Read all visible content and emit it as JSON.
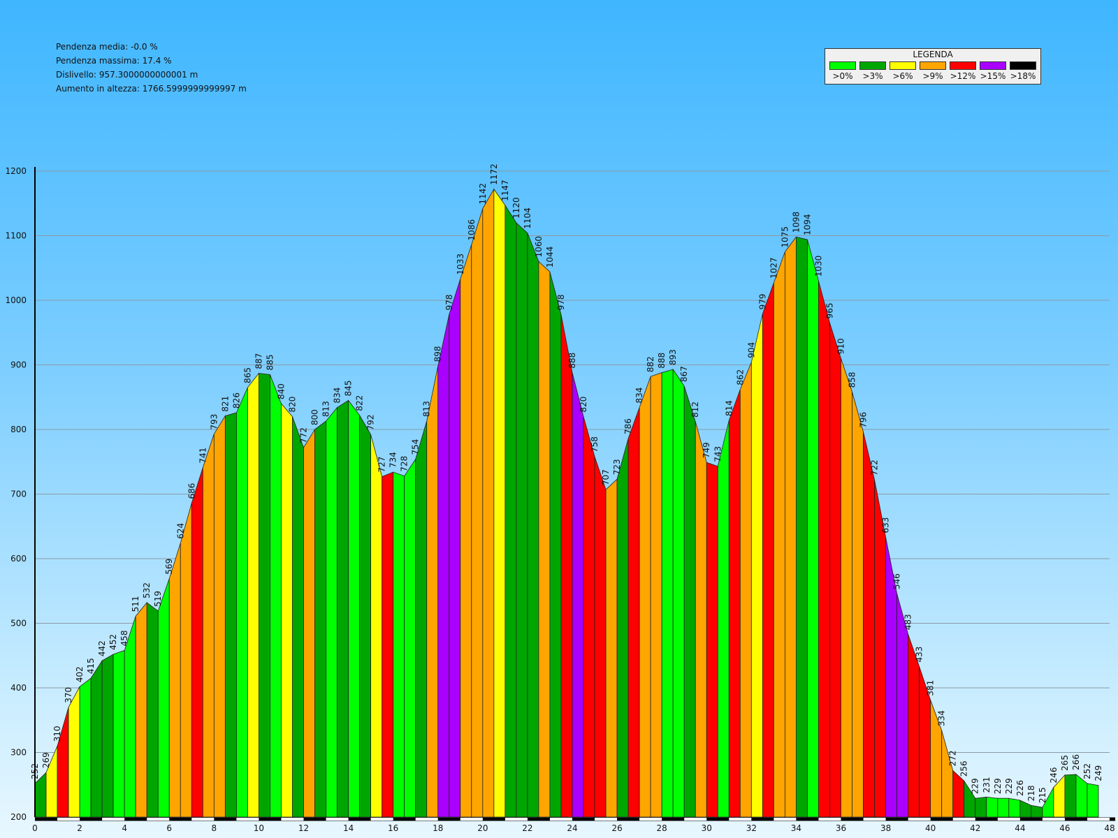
{
  "stats": {
    "avg_slope": "Pendenza media: -0.0 %",
    "max_slope": "Pendenza massima: 17.4 %",
    "elevation_diff": "Dislivello: 957.3000000000001 m",
    "total_gain": "Aumento in altezza: 1766.5999999999997 m"
  },
  "legend": {
    "title": "LEGENDA",
    "items": [
      {
        "label": ">0%",
        "color": "#00ff00"
      },
      {
        "label": ">3%",
        "color": "#00a600"
      },
      {
        "label": ">6%",
        "color": "#ffff00"
      },
      {
        "label": ">9%",
        "color": "#ffa500"
      },
      {
        "label": ">12%",
        "color": "#ff0000"
      },
      {
        "label": ">15%",
        "color": "#aa00ff"
      },
      {
        "label": ">18%",
        "color": "#000000"
      }
    ]
  },
  "chart_data": {
    "type": "area",
    "x_step_km": 0.5,
    "xlim": [
      0,
      48
    ],
    "ylim": [
      200,
      1200
    ],
    "yticks": [
      200,
      300,
      400,
      500,
      600,
      700,
      800,
      900,
      1000,
      1100,
      1200
    ],
    "xticks": [
      0,
      2,
      4,
      6,
      8,
      10,
      12,
      14,
      16,
      18,
      20,
      22,
      24,
      26,
      28,
      30,
      32,
      34,
      36,
      38,
      40,
      42,
      44,
      46,
      48
    ],
    "grid": true,
    "elevations": [
      252,
      269,
      310,
      370,
      402,
      415,
      442,
      452,
      458,
      511,
      532,
      519,
      569,
      624,
      686,
      741,
      793,
      821,
      826,
      865,
      887,
      885,
      840,
      820,
      772,
      800,
      813,
      834,
      845,
      822,
      792,
      727,
      734,
      728,
      754,
      813,
      898,
      978,
      1033,
      1086,
      1142,
      1172,
      1147,
      1120,
      1104,
      1060,
      1044,
      978,
      888,
      820,
      758,
      707,
      723,
      786,
      834,
      882,
      888,
      893,
      867,
      812,
      749,
      743,
      814,
      862,
      904,
      979,
      1027,
      1075,
      1098,
      1094,
      1030,
      965,
      910,
      858,
      796,
      722,
      633,
      546,
      483,
      433,
      381,
      334,
      272,
      256,
      229,
      231,
      229,
      229,
      226,
      218,
      215,
      246,
      265,
      266,
      252,
      249
    ],
    "segment_colors": [
      "#00a600",
      "#ffff00",
      "#ff0000",
      "#ffff00",
      "#00ff00",
      "#00a600",
      "#00a600",
      "#00ff00",
      "#00ff00",
      "#ffa500",
      "#00a600",
      "#00ff00",
      "#ffa500",
      "#ffa500",
      "#ff0000",
      "#ffa500",
      "#ffa500",
      "#00a600",
      "#00ff00",
      "#ffff00",
      "#00a600",
      "#00ff00",
      "#ffff00",
      "#00a600",
      "#ffa500",
      "#00a600",
      "#00ff00",
      "#00a600",
      "#00ff00",
      "#00a600",
      "#ffff00",
      "#ff0000",
      "#00ff00",
      "#00ff00",
      "#00a600",
      "#ffa500",
      "#aa00ff",
      "#aa00ff",
      "#ffa500",
      "#ffa500",
      "#ffa500",
      "#ffff00",
      "#00a600",
      "#00a600",
      "#00a600",
      "#ffa500",
      "#00a600",
      "#ff0000",
      "#aa00ff",
      "#ff0000",
      "#ff0000",
      "#ffa500",
      "#00a600",
      "#ff0000",
      "#ffa500",
      "#ffa500",
      "#00ff00",
      "#00ff00",
      "#00a600",
      "#ffa500",
      "#ff0000",
      "#00ff00",
      "#ff0000",
      "#ffa500",
      "#ffff00",
      "#ff0000",
      "#ffa500",
      "#ffa500",
      "#00a600",
      "#00ff00",
      "#ff0000",
      "#ff0000",
      "#ffa500",
      "#ffa500",
      "#ff0000",
      "#ff0000",
      "#aa00ff",
      "#aa00ff",
      "#ff0000",
      "#ff0000",
      "#ffa500",
      "#ffa500",
      "#ff0000",
      "#00a600",
      "#00a600",
      "#00ff00",
      "#00ff00",
      "#00ff00",
      "#00a600",
      "#00a600",
      "#00ff00",
      "#ffff00",
      "#00a600",
      "#00ff00",
      "#00ff00"
    ]
  }
}
